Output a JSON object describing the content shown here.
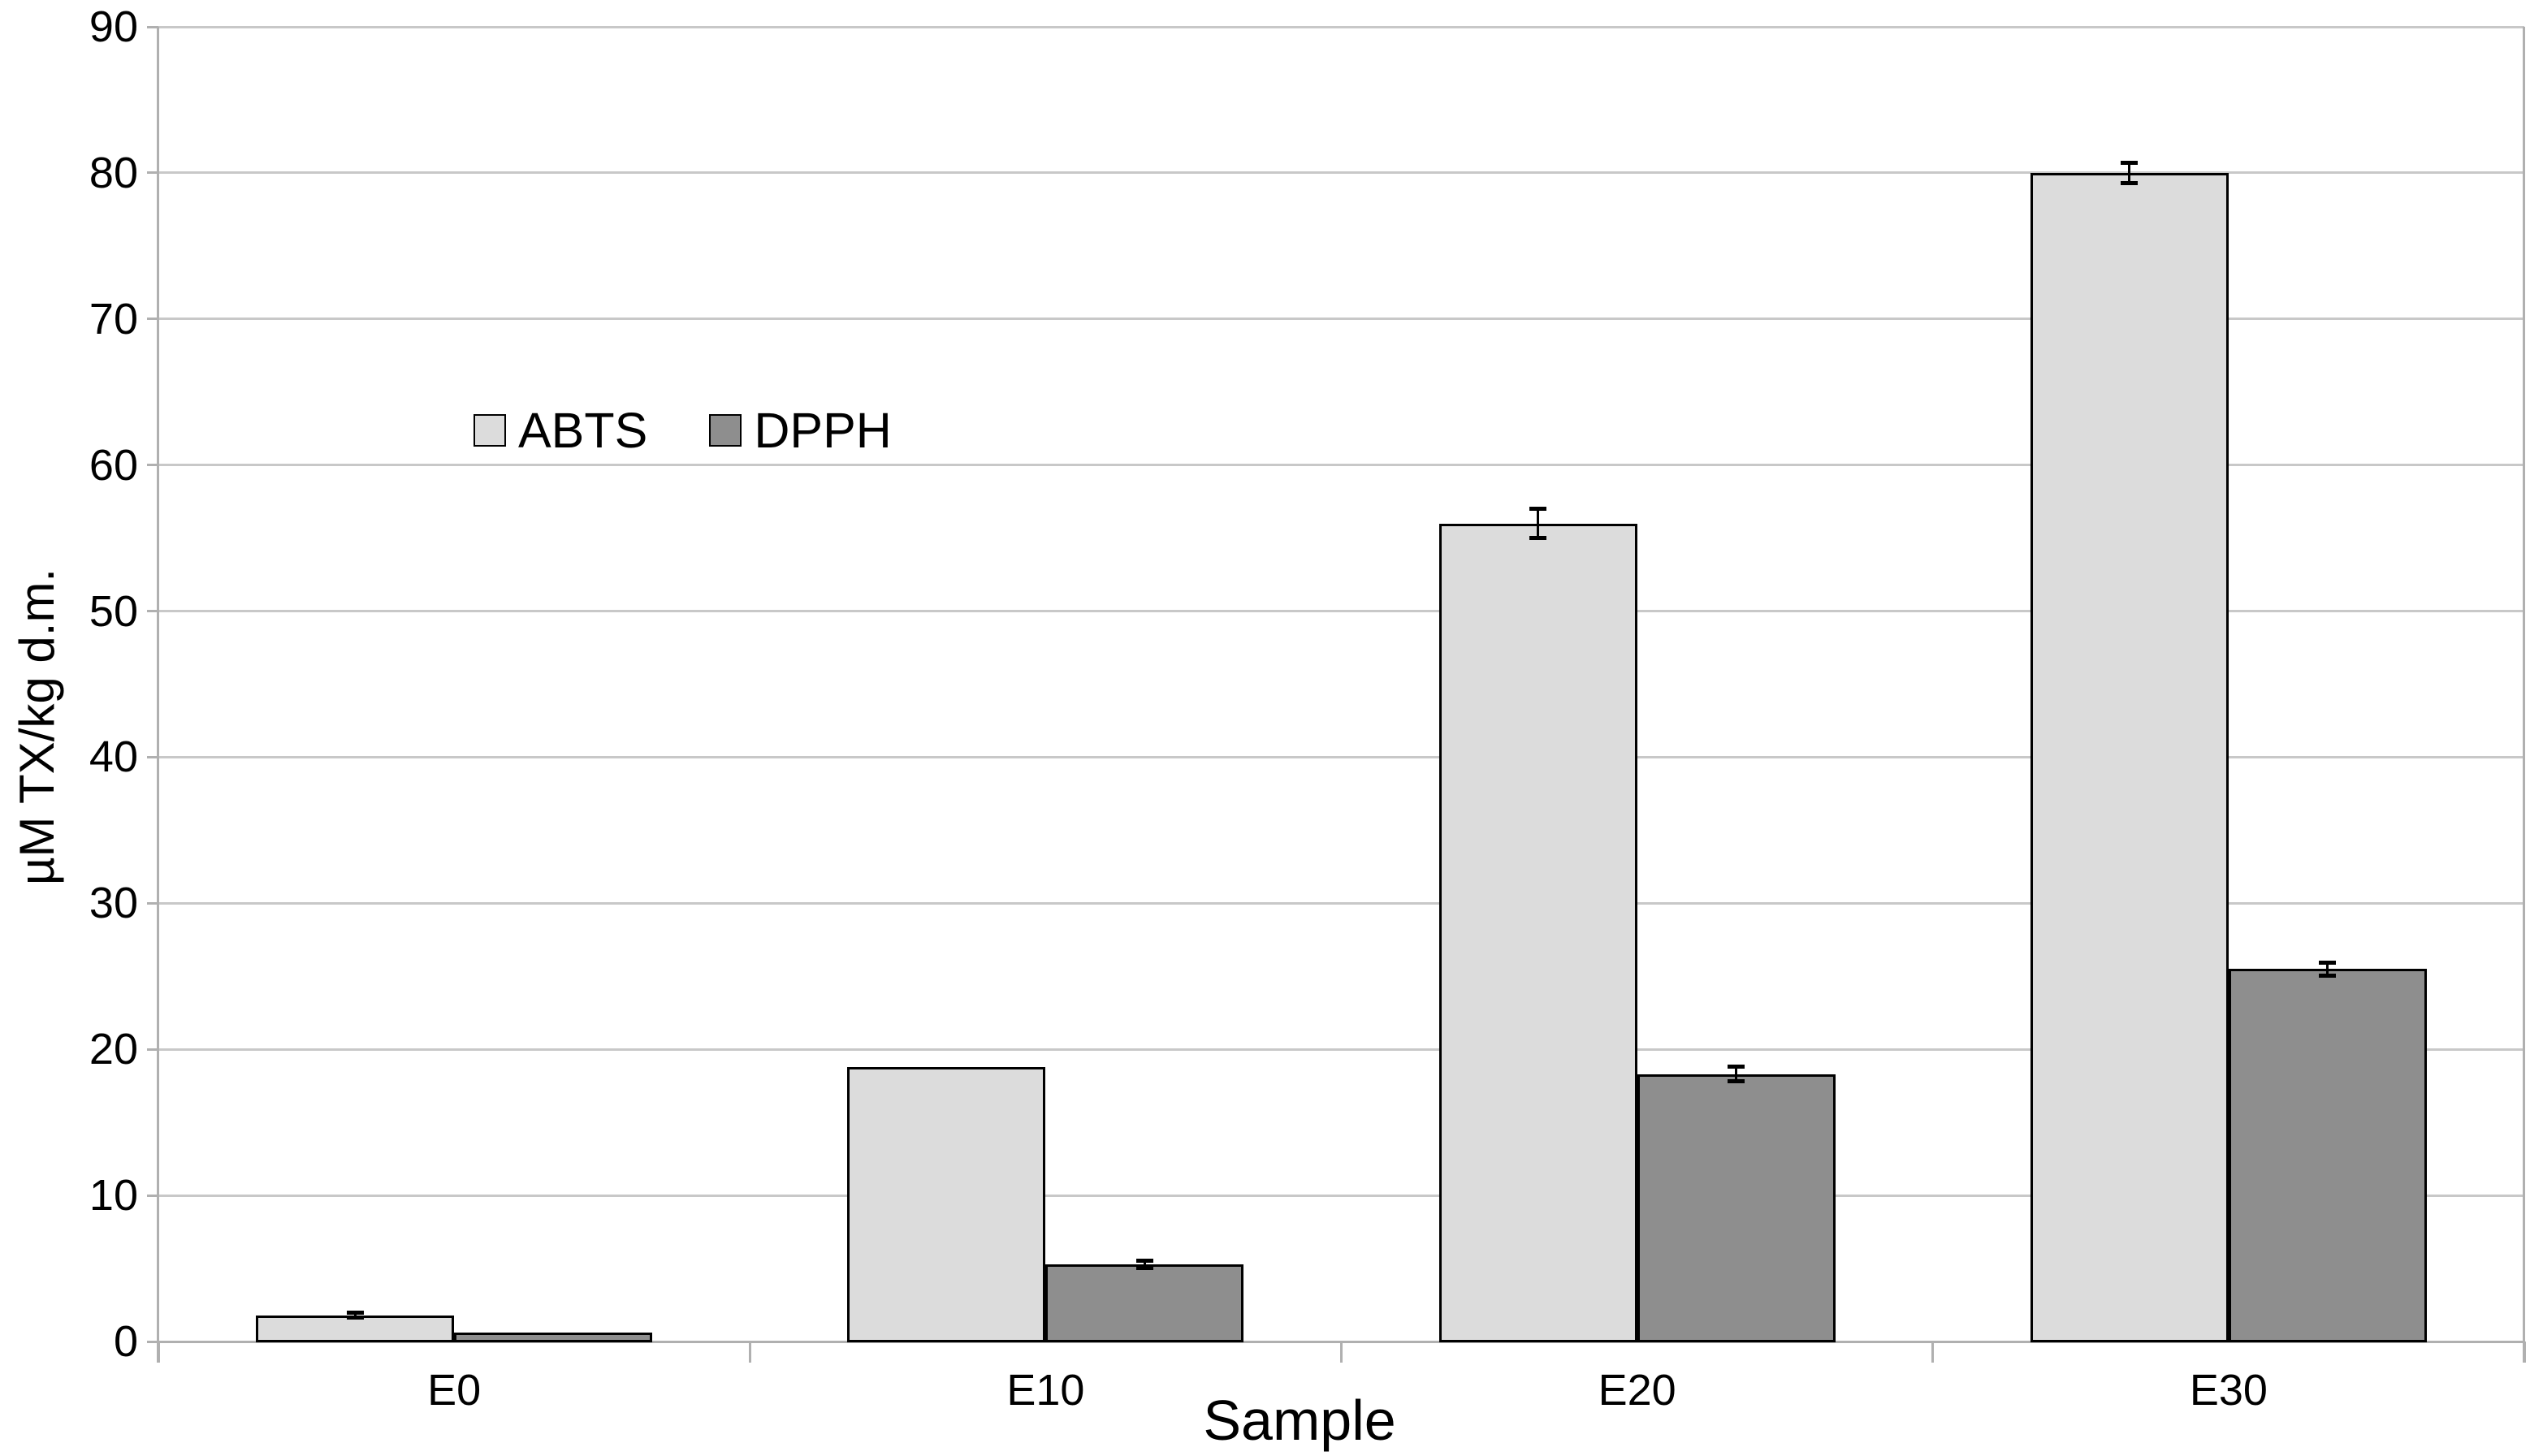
{
  "chart_data": {
    "type": "bar",
    "title": "",
    "categories": [
      "E0",
      "E10",
      "E20",
      "E30"
    ],
    "series": [
      {
        "name": "ABTS",
        "color": "#dcdcdc",
        "values": [
          1.8,
          18.8,
          56.0,
          80.0
        ],
        "errors": [
          0.15,
          0,
          1.0,
          0.7
        ]
      },
      {
        "name": "DPPH",
        "color": "#8e8e8e",
        "values": [
          0.6,
          5.3,
          18.3,
          25.5
        ],
        "errors": [
          0,
          0.25,
          0.5,
          0.45
        ]
      }
    ],
    "xlabel": "Sample",
    "ylabel": "µM TX/kg d.m.",
    "ylim": [
      0,
      90
    ],
    "yticks": [
      0,
      10,
      20,
      30,
      40,
      50,
      60,
      70,
      80,
      90
    ],
    "grid": true,
    "legend_position": "inside-top-left",
    "error_bars": true
  },
  "colors": {
    "background": "#ffffff",
    "gridline": "#c8c8c8",
    "axis": "#b0b0b0",
    "bar_border": "#000000",
    "text": "#000000"
  }
}
